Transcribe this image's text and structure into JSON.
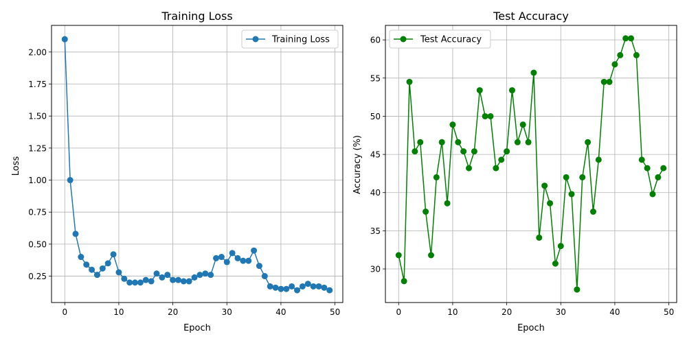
{
  "chart_data": [
    {
      "type": "line",
      "title": "Training Loss",
      "xlabel": "Epoch",
      "ylabel": "Loss",
      "xlim": [
        -2.45,
        51.45
      ],
      "ylim": [
        0.044,
        2.208
      ],
      "xticks": [
        0,
        10,
        20,
        30,
        40,
        50
      ],
      "yticks": [
        0.25,
        0.5,
        0.75,
        1.0,
        1.25,
        1.5,
        1.75,
        2.0
      ],
      "ytick_labels": [
        "0.25",
        "0.50",
        "0.75",
        "1.00",
        "1.25",
        "1.50",
        "1.75",
        "2.00"
      ],
      "grid": true,
      "legend": "top-right",
      "series": [
        {
          "name": "Training Loss",
          "color": "#1f77b4",
          "x": [
            0,
            1,
            2,
            3,
            4,
            5,
            6,
            7,
            8,
            9,
            10,
            11,
            12,
            13,
            14,
            15,
            16,
            17,
            18,
            19,
            20,
            21,
            22,
            23,
            24,
            25,
            26,
            27,
            28,
            29,
            30,
            31,
            32,
            33,
            34,
            35,
            36,
            37,
            38,
            39,
            40,
            41,
            42,
            43,
            44,
            45,
            46,
            47,
            48,
            49
          ],
          "values": [
            2.1,
            1.0,
            0.58,
            0.4,
            0.34,
            0.3,
            0.26,
            0.31,
            0.35,
            0.42,
            0.28,
            0.23,
            0.2,
            0.2,
            0.2,
            0.22,
            0.21,
            0.27,
            0.24,
            0.26,
            0.22,
            0.22,
            0.21,
            0.21,
            0.24,
            0.26,
            0.27,
            0.26,
            0.39,
            0.4,
            0.36,
            0.43,
            0.39,
            0.37,
            0.37,
            0.45,
            0.33,
            0.25,
            0.17,
            0.16,
            0.15,
            0.15,
            0.17,
            0.14,
            0.17,
            0.19,
            0.17,
            0.17,
            0.16,
            0.14
          ]
        }
      ]
    },
    {
      "type": "line",
      "title": "Test Accuracy",
      "xlabel": "Epoch",
      "ylabel": "Accuracy (%)",
      "xlim": [
        -2.45,
        51.45
      ],
      "ylim": [
        25.6,
        61.9
      ],
      "xticks": [
        0,
        10,
        20,
        30,
        40,
        50
      ],
      "yticks": [
        30,
        35,
        40,
        45,
        50,
        55,
        60
      ],
      "ytick_labels": [
        "30",
        "35",
        "40",
        "45",
        "50",
        "55",
        "60"
      ],
      "grid": true,
      "legend": "top-left",
      "series": [
        {
          "name": "Test Accuracy",
          "color": "#008000",
          "x": [
            0,
            1,
            2,
            3,
            4,
            5,
            6,
            7,
            8,
            9,
            10,
            11,
            12,
            13,
            14,
            15,
            16,
            17,
            18,
            19,
            20,
            21,
            22,
            23,
            24,
            25,
            26,
            27,
            28,
            29,
            30,
            31,
            32,
            33,
            34,
            35,
            36,
            37,
            38,
            39,
            40,
            41,
            42,
            43,
            44,
            45,
            46,
            47,
            48,
            49
          ],
          "values": [
            31.8,
            28.4,
            54.5,
            45.4,
            46.6,
            37.5,
            31.8,
            42.0,
            46.6,
            38.6,
            48.9,
            46.6,
            45.4,
            43.2,
            45.4,
            53.4,
            50.0,
            50.0,
            43.2,
            44.3,
            45.4,
            53.4,
            46.6,
            48.9,
            46.6,
            55.7,
            34.1,
            40.9,
            38.6,
            30.7,
            33.0,
            42.0,
            39.8,
            27.3,
            42.0,
            46.6,
            37.5,
            44.3,
            54.5,
            54.5,
            56.8,
            58.0,
            60.2,
            60.2,
            58.0,
            44.3,
            43.2,
            39.8,
            42.0,
            43.2
          ]
        }
      ]
    }
  ]
}
